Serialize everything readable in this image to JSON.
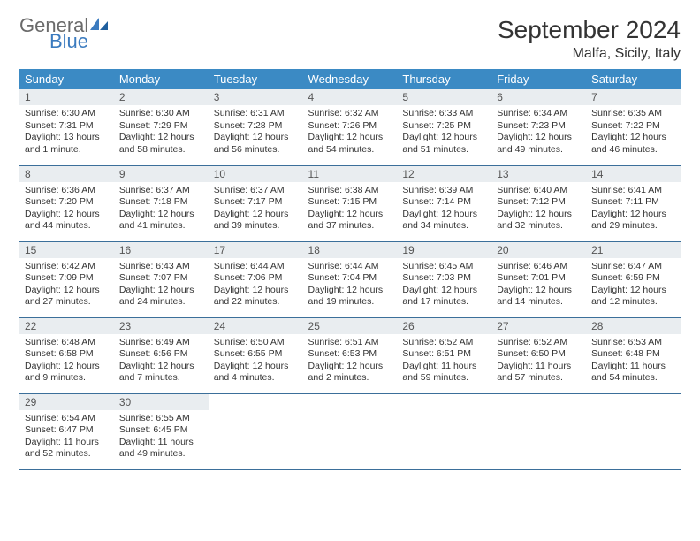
{
  "brand": {
    "general": "General",
    "blue": "Blue"
  },
  "title": "September 2024",
  "location": "Malfa, Sicily, Italy",
  "colors": {
    "header_bg": "#3b8ac4",
    "header_text": "#ffffff",
    "daynum_bg": "#e9edf0",
    "row_border": "#3b6f9a",
    "logo_gray": "#6a6a6a",
    "logo_blue": "#3b7bbf"
  },
  "weekdays": [
    "Sunday",
    "Monday",
    "Tuesday",
    "Wednesday",
    "Thursday",
    "Friday",
    "Saturday"
  ],
  "days": [
    {
      "n": "1",
      "sr": "6:30 AM",
      "ss": "7:31 PM",
      "dl": "13 hours and 1 minute."
    },
    {
      "n": "2",
      "sr": "6:30 AM",
      "ss": "7:29 PM",
      "dl": "12 hours and 58 minutes."
    },
    {
      "n": "3",
      "sr": "6:31 AM",
      "ss": "7:28 PM",
      "dl": "12 hours and 56 minutes."
    },
    {
      "n": "4",
      "sr": "6:32 AM",
      "ss": "7:26 PM",
      "dl": "12 hours and 54 minutes."
    },
    {
      "n": "5",
      "sr": "6:33 AM",
      "ss": "7:25 PM",
      "dl": "12 hours and 51 minutes."
    },
    {
      "n": "6",
      "sr": "6:34 AM",
      "ss": "7:23 PM",
      "dl": "12 hours and 49 minutes."
    },
    {
      "n": "7",
      "sr": "6:35 AM",
      "ss": "7:22 PM",
      "dl": "12 hours and 46 minutes."
    },
    {
      "n": "8",
      "sr": "6:36 AM",
      "ss": "7:20 PM",
      "dl": "12 hours and 44 minutes."
    },
    {
      "n": "9",
      "sr": "6:37 AM",
      "ss": "7:18 PM",
      "dl": "12 hours and 41 minutes."
    },
    {
      "n": "10",
      "sr": "6:37 AM",
      "ss": "7:17 PM",
      "dl": "12 hours and 39 minutes."
    },
    {
      "n": "11",
      "sr": "6:38 AM",
      "ss": "7:15 PM",
      "dl": "12 hours and 37 minutes."
    },
    {
      "n": "12",
      "sr": "6:39 AM",
      "ss": "7:14 PM",
      "dl": "12 hours and 34 minutes."
    },
    {
      "n": "13",
      "sr": "6:40 AM",
      "ss": "7:12 PM",
      "dl": "12 hours and 32 minutes."
    },
    {
      "n": "14",
      "sr": "6:41 AM",
      "ss": "7:11 PM",
      "dl": "12 hours and 29 minutes."
    },
    {
      "n": "15",
      "sr": "6:42 AM",
      "ss": "7:09 PM",
      "dl": "12 hours and 27 minutes."
    },
    {
      "n": "16",
      "sr": "6:43 AM",
      "ss": "7:07 PM",
      "dl": "12 hours and 24 minutes."
    },
    {
      "n": "17",
      "sr": "6:44 AM",
      "ss": "7:06 PM",
      "dl": "12 hours and 22 minutes."
    },
    {
      "n": "18",
      "sr": "6:44 AM",
      "ss": "7:04 PM",
      "dl": "12 hours and 19 minutes."
    },
    {
      "n": "19",
      "sr": "6:45 AM",
      "ss": "7:03 PM",
      "dl": "12 hours and 17 minutes."
    },
    {
      "n": "20",
      "sr": "6:46 AM",
      "ss": "7:01 PM",
      "dl": "12 hours and 14 minutes."
    },
    {
      "n": "21",
      "sr": "6:47 AM",
      "ss": "6:59 PM",
      "dl": "12 hours and 12 minutes."
    },
    {
      "n": "22",
      "sr": "6:48 AM",
      "ss": "6:58 PM",
      "dl": "12 hours and 9 minutes."
    },
    {
      "n": "23",
      "sr": "6:49 AM",
      "ss": "6:56 PM",
      "dl": "12 hours and 7 minutes."
    },
    {
      "n": "24",
      "sr": "6:50 AM",
      "ss": "6:55 PM",
      "dl": "12 hours and 4 minutes."
    },
    {
      "n": "25",
      "sr": "6:51 AM",
      "ss": "6:53 PM",
      "dl": "12 hours and 2 minutes."
    },
    {
      "n": "26",
      "sr": "6:52 AM",
      "ss": "6:51 PM",
      "dl": "11 hours and 59 minutes."
    },
    {
      "n": "27",
      "sr": "6:52 AM",
      "ss": "6:50 PM",
      "dl": "11 hours and 57 minutes."
    },
    {
      "n": "28",
      "sr": "6:53 AM",
      "ss": "6:48 PM",
      "dl": "11 hours and 54 minutes."
    },
    {
      "n": "29",
      "sr": "6:54 AM",
      "ss": "6:47 PM",
      "dl": "11 hours and 52 minutes."
    },
    {
      "n": "30",
      "sr": "6:55 AM",
      "ss": "6:45 PM",
      "dl": "11 hours and 49 minutes."
    }
  ],
  "labels": {
    "sunrise": "Sunrise:",
    "sunset": "Sunset:",
    "daylight": "Daylight:"
  }
}
